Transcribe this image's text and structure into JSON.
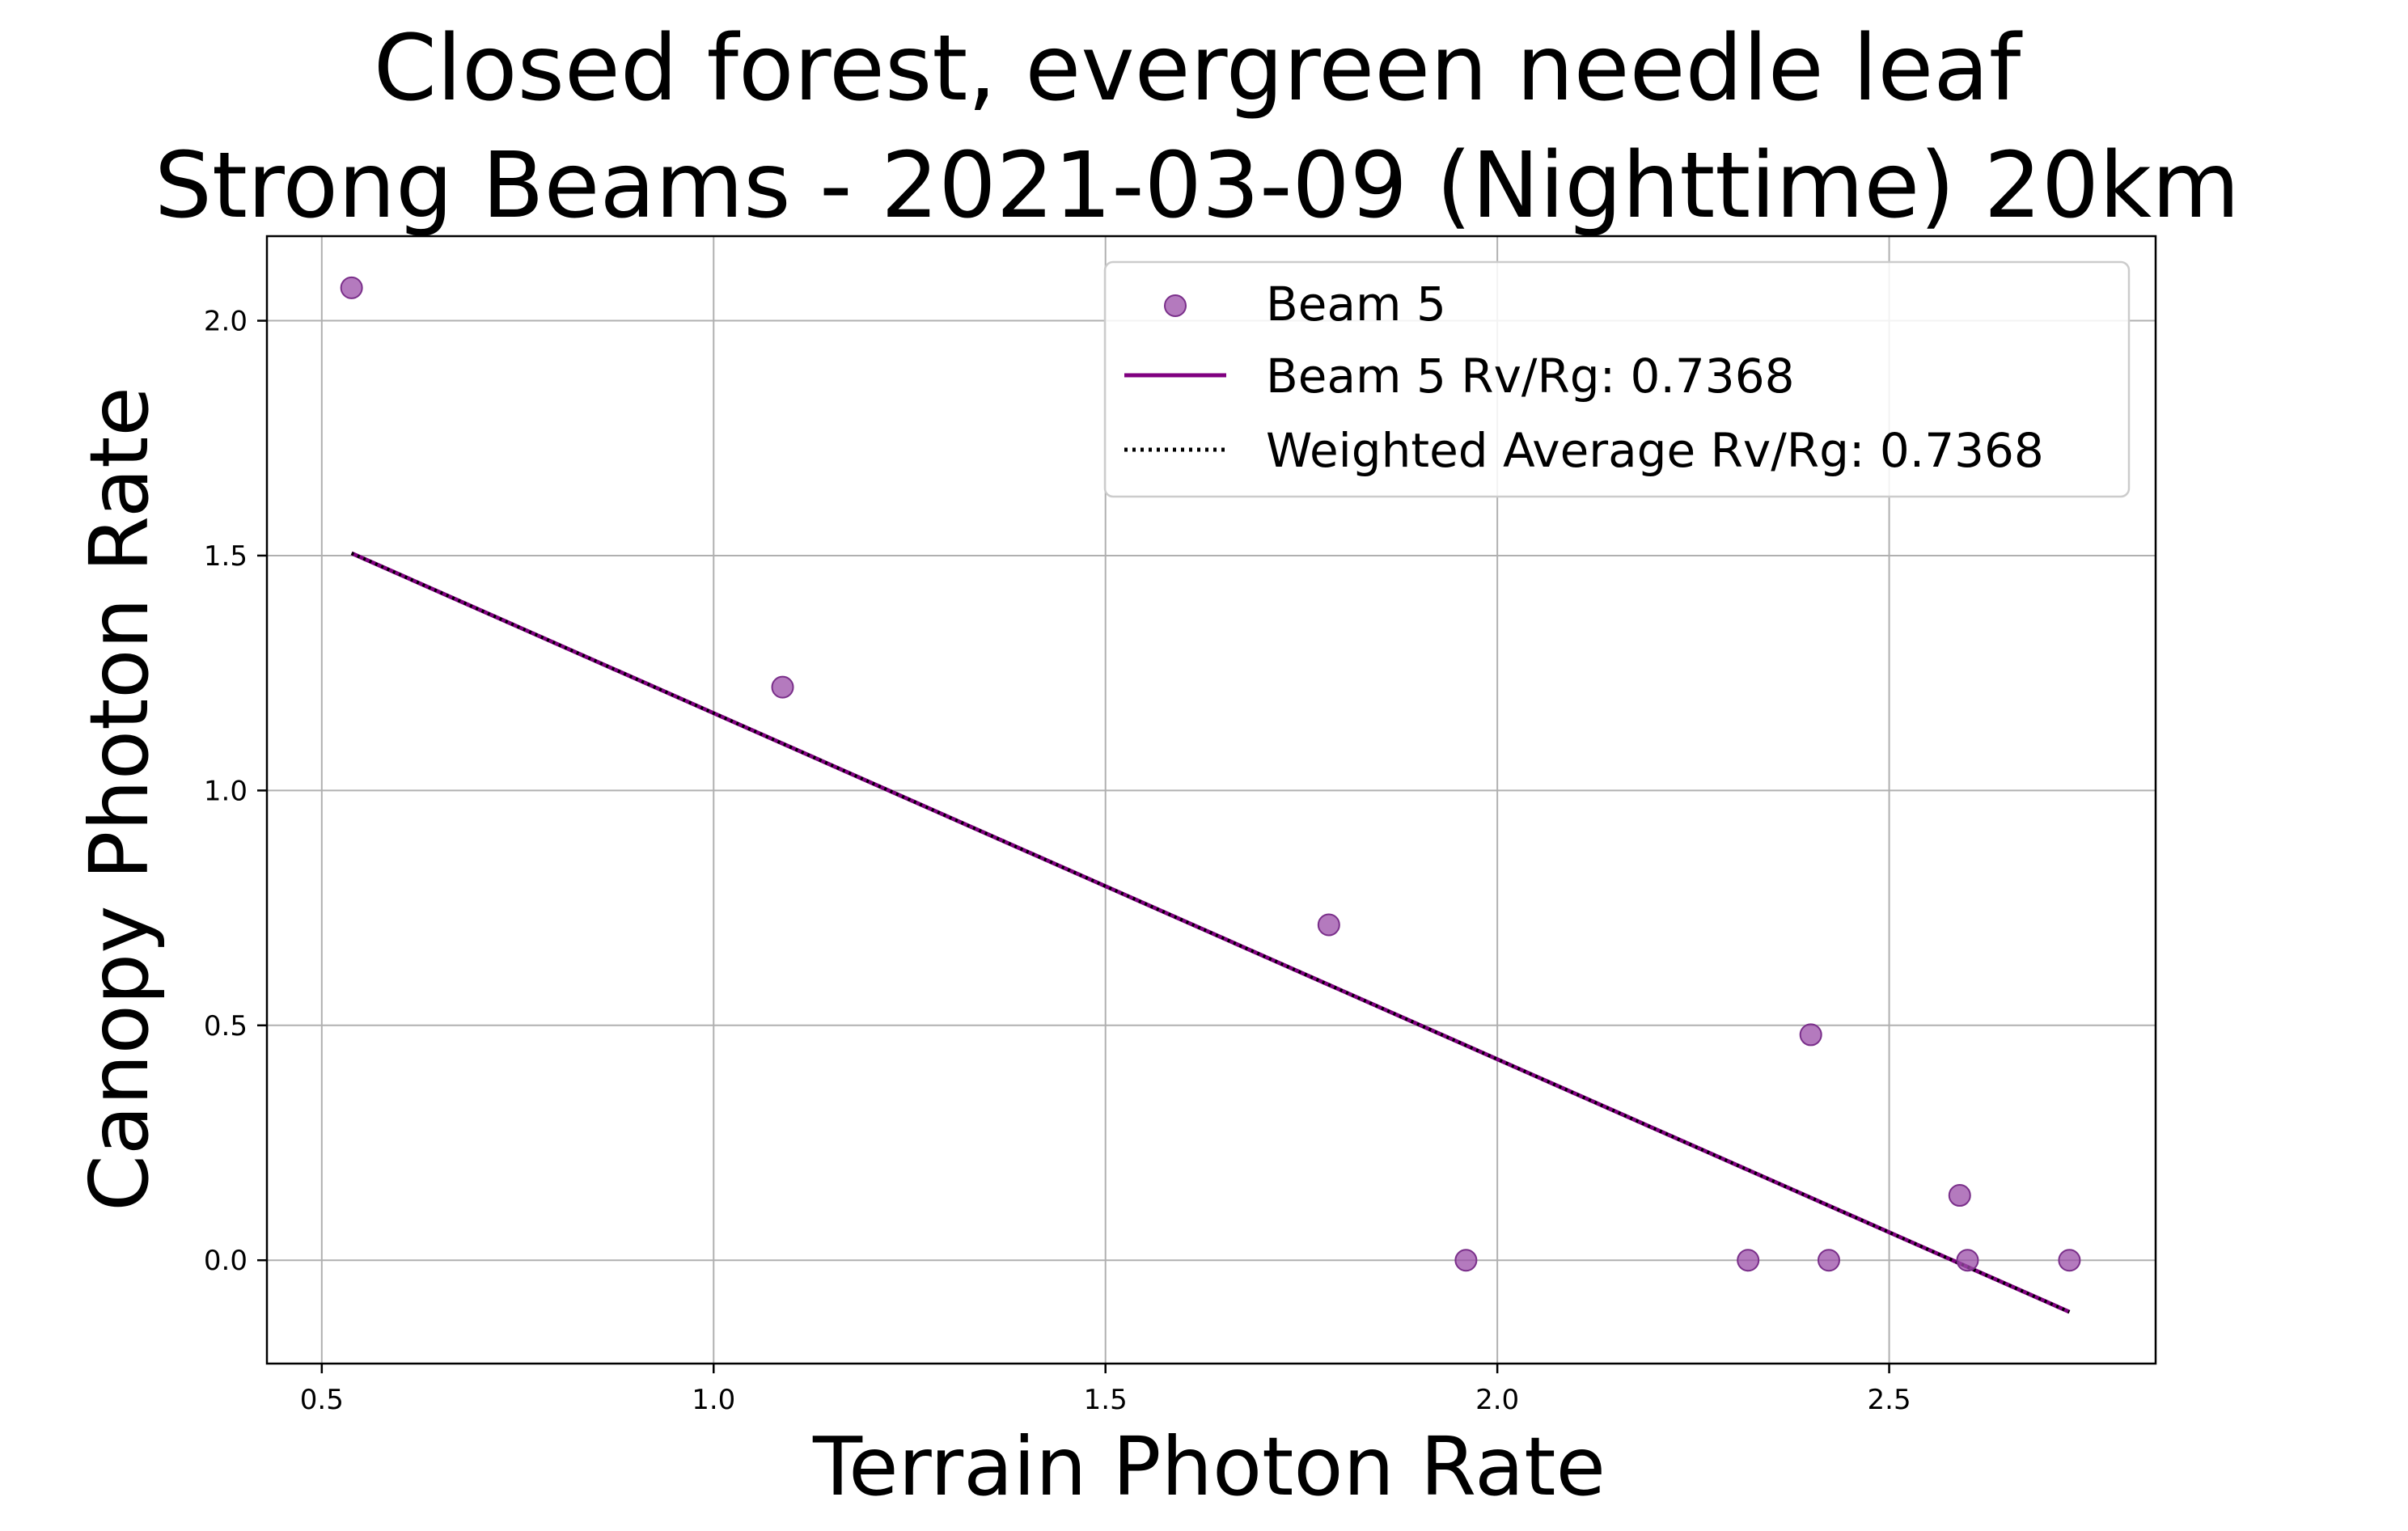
{
  "chart_data": {
    "type": "scatter",
    "title_lines": [
      "Closed forest, evergreen needle leaf",
      "Strong Beams - 2021-03-09 (Nighttime) 20km"
    ],
    "xlabel": "Terrain Photon Rate",
    "ylabel": "Canopy Photon Rate",
    "xlim": [
      0.43,
      2.84
    ],
    "ylim": [
      -0.22,
      2.18
    ],
    "x_ticks": [
      0.5,
      1.0,
      1.5,
      2.0,
      2.5
    ],
    "x_tick_labels": [
      "0.5",
      "1.0",
      "1.5",
      "2.0",
      "2.5"
    ],
    "y_ticks": [
      0.0,
      0.5,
      1.0,
      1.5,
      2.0
    ],
    "y_tick_labels": [
      "0.0",
      "0.5",
      "1.0",
      "1.5",
      "2.0"
    ],
    "grid": true,
    "legend_position": "top-right",
    "series": [
      {
        "name": "Beam 5",
        "kind": "scatter",
        "color": "#9b4ea8",
        "x": [
          0.538,
          1.088,
          1.785,
          1.96,
          2.32,
          2.4,
          2.423,
          2.59,
          2.6,
          2.73
        ],
        "y": [
          2.07,
          1.22,
          0.714,
          0.0,
          0.0,
          0.48,
          0.0,
          0.138,
          0.0,
          0.0
        ]
      },
      {
        "name": "Beam 5 Rv/Rg: 0.7368",
        "kind": "line",
        "color": "#800080",
        "x": [
          0.538,
          2.73
        ],
        "y": [
          1.505,
          -0.11
        ]
      },
      {
        "name": "Weighted Average Rv/Rg: 0.7368",
        "kind": "dotted-line",
        "color": "#000000",
        "x": [
          0.538,
          2.73
        ],
        "y": [
          1.505,
          -0.11
        ]
      }
    ]
  }
}
